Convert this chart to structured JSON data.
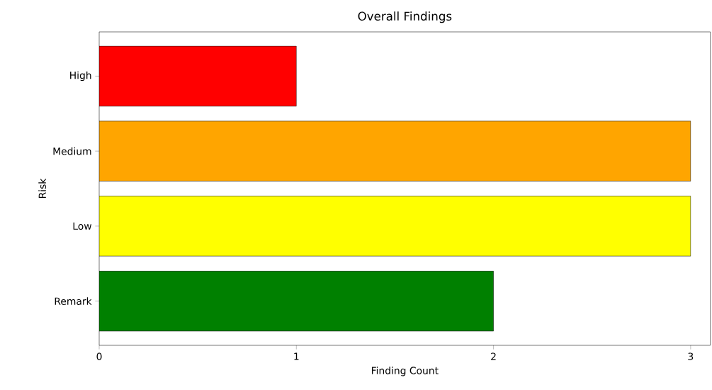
{
  "chart_data": {
    "type": "bar",
    "orientation": "horizontal",
    "title": "Overall Findings",
    "xlabel": "Finding Count",
    "ylabel": "Risk",
    "categories": [
      "High",
      "Medium",
      "Low",
      "Remark"
    ],
    "values": [
      1,
      3,
      3,
      2
    ],
    "colors": [
      "#ff0000",
      "#ffa500",
      "#ffff00",
      "#008000"
    ],
    "xlim": [
      0,
      3.1
    ],
    "xticks": [
      0,
      1,
      2,
      3
    ]
  }
}
